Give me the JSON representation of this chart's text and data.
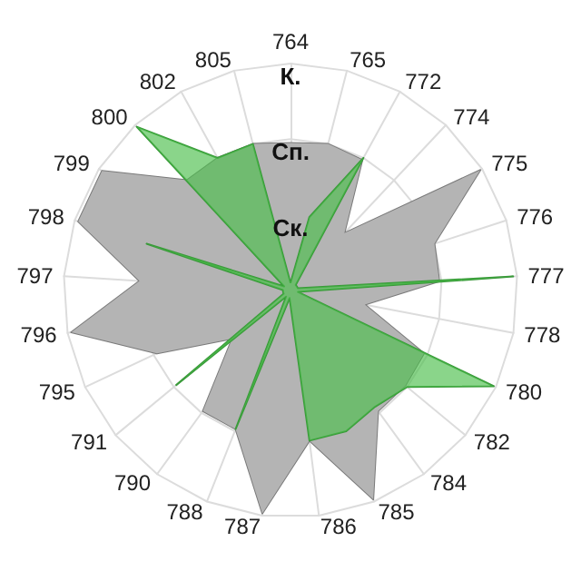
{
  "chart_data": {
    "type": "radar",
    "categories": [
      "764",
      "765",
      "772",
      "774",
      "775",
      "776",
      "777",
      "778",
      "780",
      "782",
      "784",
      "785",
      "786",
      "787",
      "788",
      "790",
      "791",
      "795",
      "796",
      "797",
      "798",
      "799",
      "800",
      "802",
      "805"
    ],
    "ylim": [
      0,
      3
    ],
    "yticks": [
      {
        "value": 1,
        "label": "Ск."
      },
      {
        "value": 2,
        "label": "Сп."
      },
      {
        "value": 3,
        "label": "К."
      }
    ],
    "grid": true,
    "marker": "none",
    "series": [
      {
        "color": "#b4b4b4",
        "values": [
          1.95,
          2.0,
          1.97,
          1.04,
          2.97,
          2.0,
          1.97,
          1.0,
          1.95,
          1.97,
          1.97,
          2.97,
          2.0,
          2.97,
          1.97,
          1.97,
          1.0,
          1.95,
          2.95,
          2.0,
          2.95,
          2.95,
          2.0,
          2.0,
          2.0
        ]
      },
      {
        "color": "#4cbf4c",
        "values": [
          0.1,
          1.0,
          2.0,
          0.1,
          0.1,
          0.1,
          2.95,
          0.1,
          2.97,
          2.0,
          1.9,
          2.0,
          2.0,
          0.1,
          1.97,
          0.1,
          1.96,
          0.1,
          0.1,
          0.1,
          2.0,
          0.1,
          2.97,
          2.0,
          2.0
        ]
      }
    ]
  }
}
